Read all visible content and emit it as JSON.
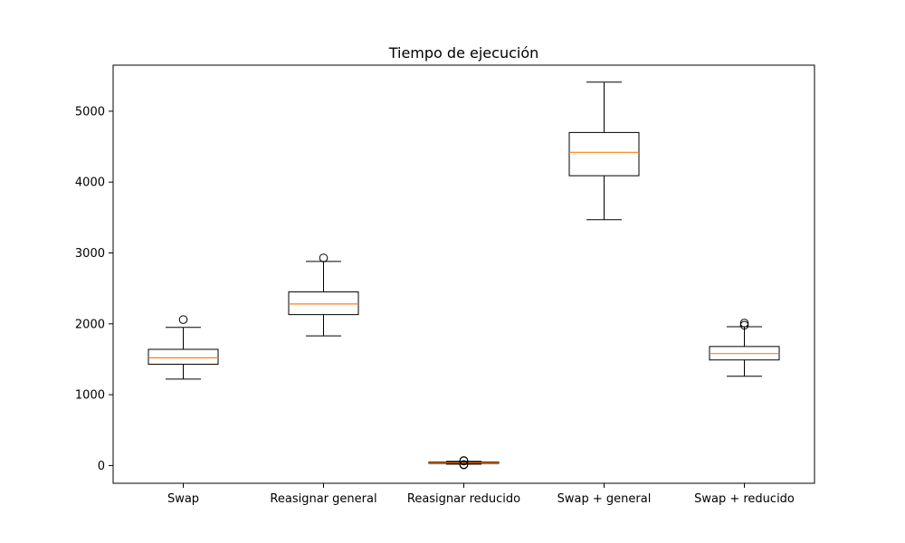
{
  "chart_data": {
    "type": "boxplot",
    "title": "Tiempo de ejecución",
    "xlabel": "",
    "ylabel": "",
    "ylim": [
      -250,
      5650
    ],
    "yticks": [
      0,
      1000,
      2000,
      3000,
      4000,
      5000
    ],
    "categories": [
      "Swap",
      "Reasignar general",
      "Reasignar reducido",
      "Swap + general",
      "Swap + reducido"
    ],
    "boxes": [
      {
        "category": "Swap",
        "whisker_low": 1220,
        "q1": 1430,
        "median": 1520,
        "q3": 1640,
        "whisker_high": 1950,
        "outliers": [
          2060
        ]
      },
      {
        "category": "Reasignar general",
        "whisker_low": 1830,
        "q1": 2130,
        "median": 2280,
        "q3": 2450,
        "whisker_high": 2880,
        "outliers": [
          2930
        ]
      },
      {
        "category": "Reasignar reducido",
        "whisker_low": 20,
        "q1": 30,
        "median": 40,
        "q3": 50,
        "whisker_high": 60,
        "outliers": [
          10,
          15,
          65,
          70
        ]
      },
      {
        "category": "Swap + general",
        "whisker_low": 3470,
        "q1": 4090,
        "median": 4420,
        "q3": 4700,
        "whisker_high": 5410,
        "outliers": []
      },
      {
        "category": "Swap + reducido",
        "whisker_low": 1260,
        "q1": 1490,
        "median": 1580,
        "q3": 1680,
        "whisker_high": 1960,
        "outliers": [
          1980,
          2010
        ]
      }
    ],
    "grid": false,
    "colors": {
      "box": "#000000",
      "median": "#ff7f0e",
      "outlier": "#000000"
    }
  }
}
